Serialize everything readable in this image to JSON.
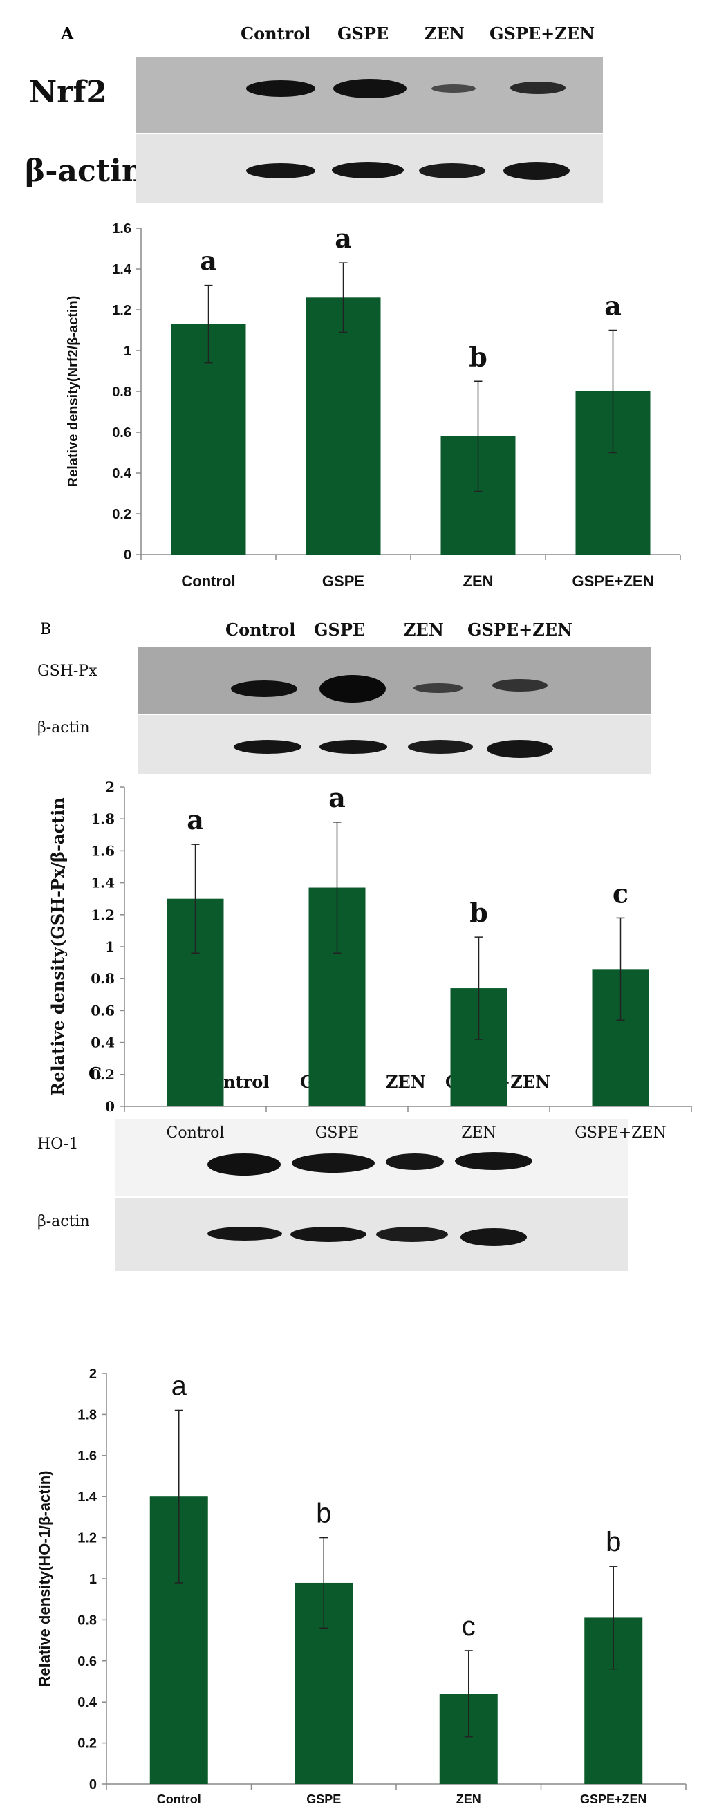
{
  "panels": [
    {
      "letter": "A",
      "blot_lanes": [
        "Control",
        "GSPE",
        "ZEN",
        "GSPE+ZEN"
      ],
      "blot_rows": [
        "Nrf2",
        "β-actin"
      ],
      "band_intensity": {
        "Nrf2": [
          0.95,
          0.95,
          0.35,
          0.6
        ],
        "β-actin": [
          0.9,
          0.9,
          0.85,
          0.9
        ]
      }
    },
    {
      "letter": "B",
      "blot_lanes": [
        "Control",
        "GSPE",
        "ZEN",
        "GSPE+ZEN"
      ],
      "blot_rows": [
        "GSH-Px",
        "β-actin"
      ],
      "band_intensity": {
        "GSH-Px": [
          0.9,
          1.0,
          0.45,
          0.55
        ],
        "β-actin": [
          0.9,
          0.9,
          0.85,
          0.9
        ]
      }
    },
    {
      "letter": "C",
      "blot_lanes": [
        "Control",
        "GSPE",
        "ZEN",
        "GSPE+ZEN"
      ],
      "blot_rows": [
        "HO-1",
        "β-actin"
      ],
      "band_intensity": {
        "HO-1": [
          0.95,
          0.9,
          0.85,
          0.9
        ],
        "β-actin": [
          0.9,
          0.9,
          0.85,
          0.9
        ]
      }
    }
  ],
  "colors": {
    "bar": "#0b5a2c",
    "axis": "#8a8a8a",
    "error": "#222222"
  },
  "chart_data": [
    {
      "type": "bar",
      "categories": [
        "Control",
        "GSPE",
        "ZEN",
        "GSPE+ZEN"
      ],
      "values": [
        1.13,
        1.26,
        0.58,
        0.8
      ],
      "errors": [
        0.19,
        0.17,
        0.27,
        0.3
      ],
      "letters": [
        "a",
        "a",
        "b",
        "a"
      ],
      "ylabel": "Relative density(Nrf2/β-actin)",
      "ylim": [
        0,
        1.6
      ],
      "yticks": [
        "0",
        "0.2",
        "0.4",
        "0.6",
        "0.8",
        "1",
        "1.2",
        "1.4",
        "1.6"
      ],
      "grid": false
    },
    {
      "type": "bar",
      "categories": [
        "Control",
        "GSPE",
        "ZEN",
        "GSPE+ZEN"
      ],
      "values": [
        1.3,
        1.37,
        0.74,
        0.86
      ],
      "errors": [
        0.34,
        0.41,
        0.32,
        0.32
      ],
      "letters": [
        "a",
        "a",
        "b",
        "c"
      ],
      "ylabel": "Relative density(GSH-Px/β-actin",
      "ylim": [
        0,
        2
      ],
      "yticks": [
        "0",
        "0.2",
        "0.4",
        "0.6",
        "0.8",
        "1",
        "1.2",
        "1.4",
        "1.6",
        "1.8",
        "2"
      ],
      "grid": false
    },
    {
      "type": "bar",
      "categories": [
        "Control",
        "GSPE",
        "ZEN",
        "GSPE+ZEN"
      ],
      "values": [
        1.4,
        0.98,
        0.44,
        0.81
      ],
      "errors": [
        0.42,
        0.22,
        0.21,
        0.25
      ],
      "letters": [
        "a",
        "b",
        "c",
        "b"
      ],
      "ylabel": "Relative density(HO-1/β-actin)",
      "ylim": [
        0,
        2
      ],
      "yticks": [
        "0",
        "0.2",
        "0.4",
        "0.6",
        "0.8",
        "1",
        "1.2",
        "1.4",
        "1.6",
        "1.8",
        "2"
      ],
      "grid": false
    }
  ]
}
